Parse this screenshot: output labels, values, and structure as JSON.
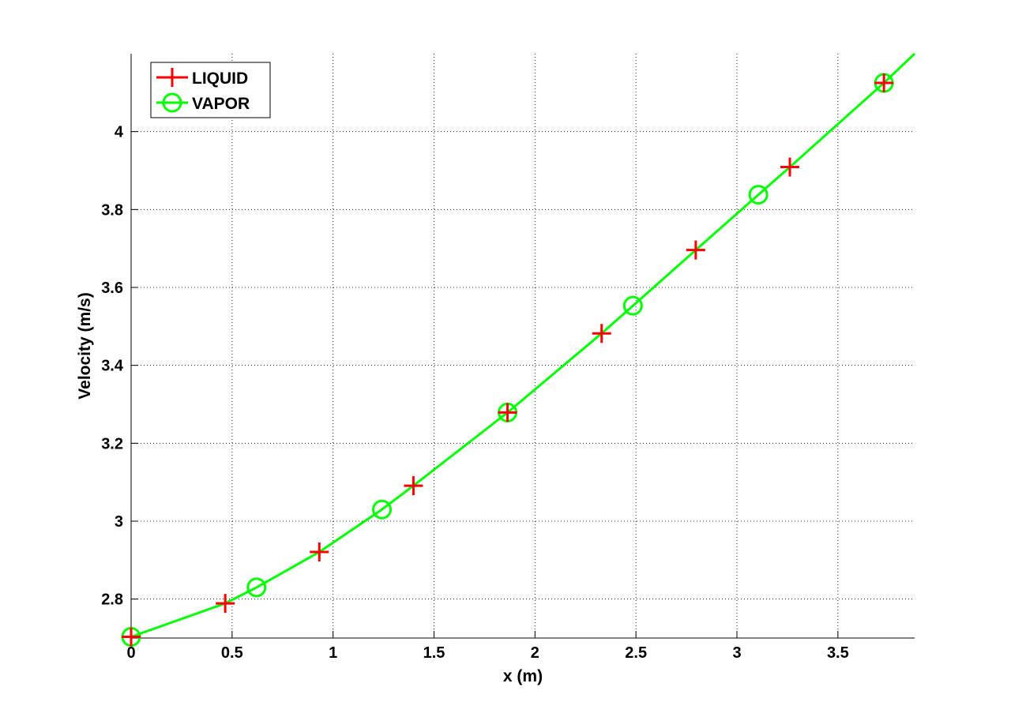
{
  "chart_data": {
    "type": "line",
    "title": "",
    "xlabel": "x (m)",
    "ylabel": "Velocity (m/s)",
    "xlim": [
      0,
      3.88
    ],
    "ylim": [
      2.7,
      4.2
    ],
    "xticks": [
      0,
      0.5,
      1,
      1.5,
      2,
      2.5,
      3,
      3.5
    ],
    "xtick_labels": [
      "0",
      "0.5",
      "1",
      "1.5",
      "2",
      "2.5",
      "3",
      "3.5"
    ],
    "yticks": [
      2.8,
      3.0,
      3.2,
      3.4,
      3.6,
      3.8,
      4.0
    ],
    "ytick_labels": [
      "2.8",
      "3",
      "3.2",
      "3.4",
      "3.6",
      "3.8",
      "4"
    ],
    "grid": true,
    "legend_position": "top-left",
    "series": [
      {
        "name": "LIQUID",
        "color": "#ff0000",
        "marker": "plus",
        "x": [
          0,
          0.466,
          0.932,
          1.398,
          1.864,
          2.33,
          2.796,
          3.262,
          3.728
        ],
        "y": [
          2.703,
          2.789,
          2.921,
          3.091,
          3.279,
          3.482,
          3.696,
          3.909,
          4.125
        ]
      },
      {
        "name": "VAPOR",
        "color": "#00ff00",
        "marker": "circle",
        "x": [
          0,
          0.621,
          1.242,
          1.864,
          2.485,
          3.106,
          3.728
        ],
        "y": [
          2.703,
          2.83,
          3.03,
          3.279,
          3.553,
          3.838,
          4.125
        ]
      }
    ],
    "curve": {
      "color": "#00ff00",
      "x": [
        0,
        0.466,
        0.621,
        0.932,
        1.242,
        1.398,
        1.864,
        2.33,
        2.485,
        2.796,
        3.106,
        3.262,
        3.728,
        3.88
      ],
      "y": [
        2.703,
        2.789,
        2.83,
        2.921,
        3.03,
        3.091,
        3.279,
        3.482,
        3.553,
        3.696,
        3.838,
        3.909,
        4.125,
        4.2
      ]
    }
  }
}
